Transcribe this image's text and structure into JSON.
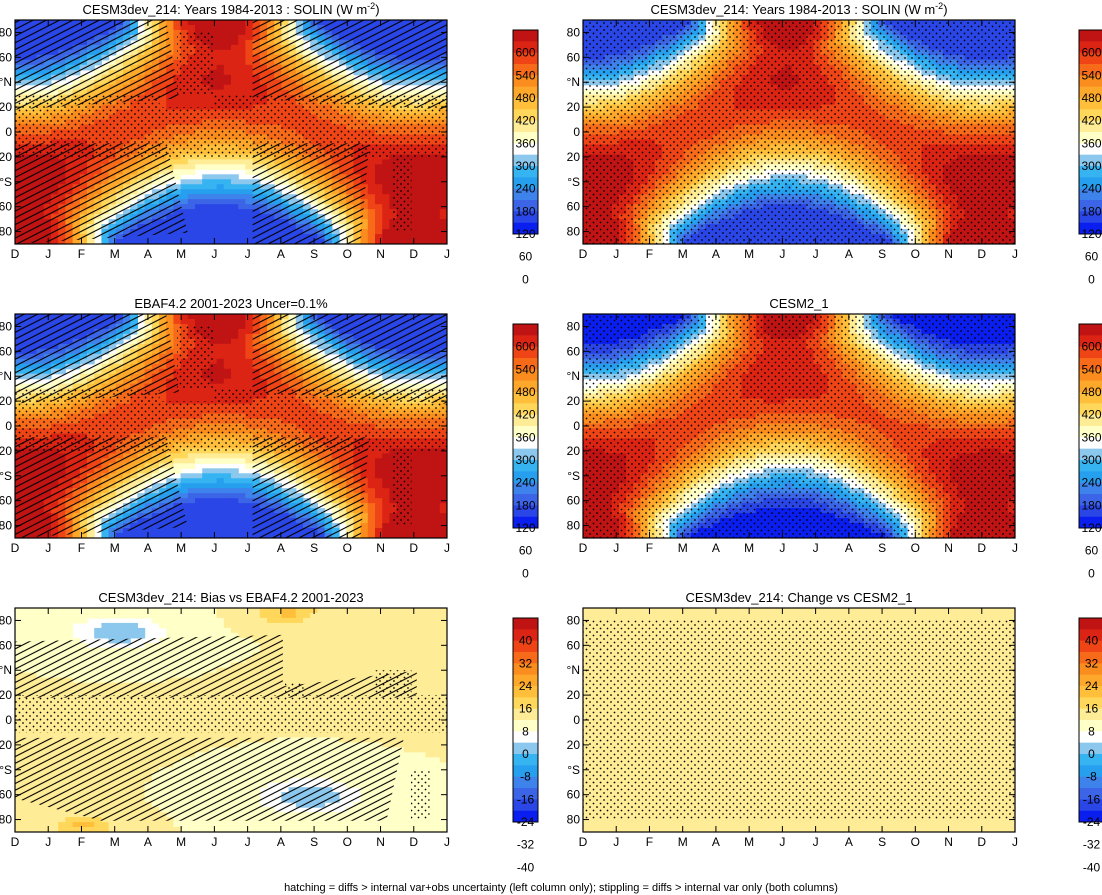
{
  "footer": "hatching = diffs > internal var+obs uncertainty (left column only); stippling = diffs > internal var only (both columns)",
  "month_ticks": [
    "D",
    "J",
    "F",
    "M",
    "A",
    "M",
    "J",
    "J",
    "A",
    "S",
    "O",
    "N",
    "D",
    "J"
  ],
  "lat_ticks": [
    "80",
    "60",
    "°N",
    "20",
    "0",
    "20",
    "°S",
    "60",
    "80"
  ],
  "colormaps": {
    "full": [
      "#0a1ef0",
      "#2a46e6",
      "#3c64e6",
      "#3e82eb",
      "#279fef",
      "#36b4f2",
      "#8cc8ee",
      "#ffffff",
      "#ffffc8",
      "#ffec96",
      "#ffd75a",
      "#ffbf3a",
      "#fda82a",
      "#fb8c1e",
      "#f66a1a",
      "#ef4516",
      "#dc2414",
      "#c01414"
    ],
    "diff": [
      "#0a1ef0",
      "#2a46e6",
      "#3c64e6",
      "#3e82eb",
      "#279fef",
      "#36b4f2",
      "#8cc8ee",
      "#ffffff",
      "#ffffc8",
      "#ffec96",
      "#ffd75a",
      "#ffbf3a",
      "#fda82a",
      "#fb8c1e",
      "#f66a1a",
      "#ef4516",
      "#dc2414",
      "#c01414"
    ]
  },
  "chart_data": [
    {
      "id": "p1",
      "type": "heatmap",
      "title": "CESM3dev_214: Years 1984-2013 : SOLIN (W m",
      "title_sup": "-2",
      "title_end": ")",
      "kind": "solin",
      "variant": "model",
      "hatch": true,
      "stipple": "ebaf",
      "x_ticks": "month_ticks",
      "y_ticks": "lat_ticks",
      "colorbar": [
        "600",
        "540",
        "480",
        "420",
        "360",
        "300",
        "240",
        "180",
        "120",
        "60",
        "0"
      ],
      "cmap": "full"
    },
    {
      "id": "p2",
      "type": "heatmap",
      "title": "CESM3dev_214: Years 1984-2013 : SOLIN (W m",
      "title_sup": "-2",
      "title_end": ")",
      "kind": "solin",
      "variant": "model",
      "hatch": false,
      "stipple": "cesm",
      "colorbar": [
        "600",
        "540",
        "480",
        "420",
        "360",
        "300",
        "240",
        "180",
        "120",
        "60",
        "0"
      ],
      "cmap": "full"
    },
    {
      "id": "p3",
      "type": "heatmap",
      "title": "EBAF4.2 2001-2023 Uncer=0.1%",
      "title_sup": "",
      "title_end": "",
      "kind": "solin",
      "variant": "ebaf",
      "hatch": true,
      "stipple": "ebaf",
      "colorbar": [
        "600",
        "540",
        "480",
        "420",
        "360",
        "300",
        "240",
        "180",
        "120",
        "60",
        "0"
      ],
      "cmap": "full"
    },
    {
      "id": "p4",
      "type": "heatmap",
      "title": "CESM2_1",
      "title_sup": "",
      "title_end": "",
      "kind": "solin",
      "variant": "cesm2",
      "hatch": false,
      "stipple": "cesm",
      "colorbar": [
        "600",
        "540",
        "480",
        "420",
        "360",
        "300",
        "240",
        "180",
        "120",
        "60",
        "0"
      ],
      "cmap": "full"
    },
    {
      "id": "p5",
      "type": "heatmap",
      "title": "CESM3dev_214: Bias vs EBAF4.2 2001-2023",
      "title_sup": "",
      "title_end": "",
      "kind": "bias",
      "hatch": true,
      "stipple": "bias",
      "colorbar": [
        "40",
        "32",
        "24",
        "16",
        "8",
        "0",
        "-8",
        "-16",
        "-24",
        "-32",
        "-40"
      ],
      "cmap": "diff"
    },
    {
      "id": "p6",
      "type": "heatmap",
      "title": "CESM3dev_214: Change vs CESM2_1",
      "title_sup": "",
      "title_end": "",
      "kind": "change",
      "hatch": false,
      "stipple": "change",
      "colorbar": [
        "40",
        "32",
        "24",
        "16",
        "8",
        "0",
        "-8",
        "-16",
        "-24",
        "-32",
        "-40"
      ],
      "cmap": "diff"
    }
  ]
}
